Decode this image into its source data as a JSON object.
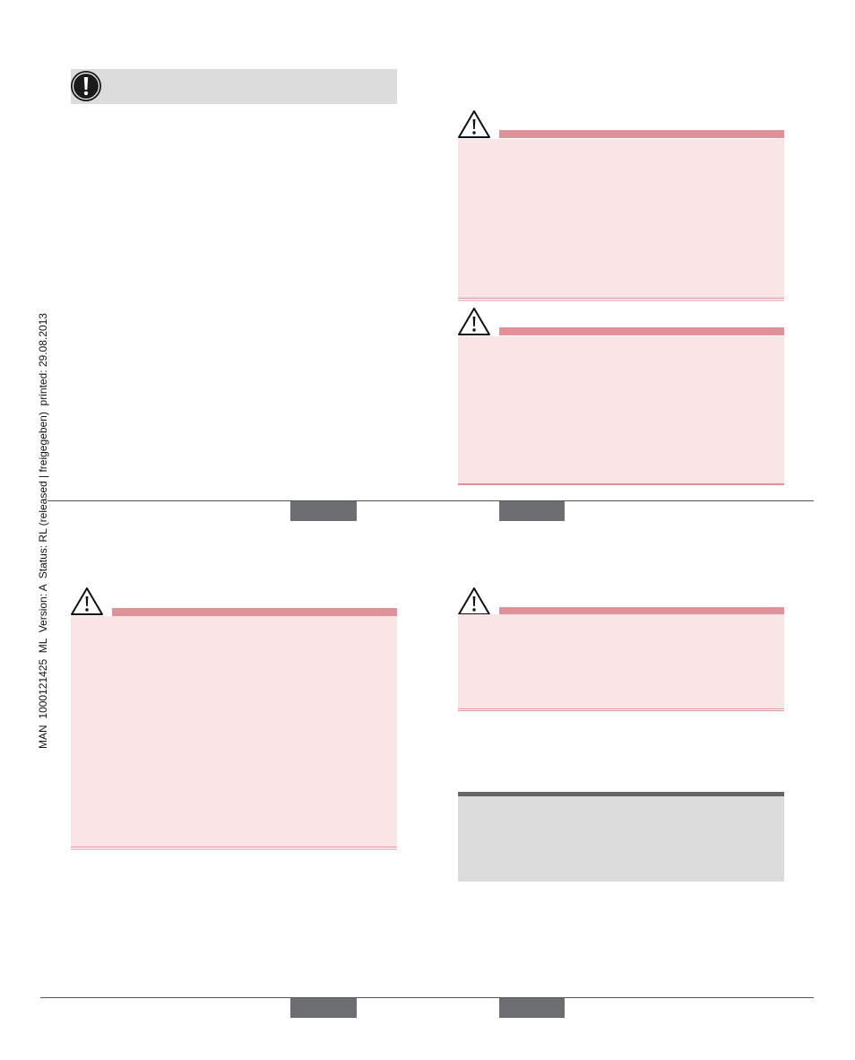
{
  "side_note": "MAN  1000121425  ML  Version: A  Status: RL (released | freigegeben)  printed: 29.08.2013"
}
